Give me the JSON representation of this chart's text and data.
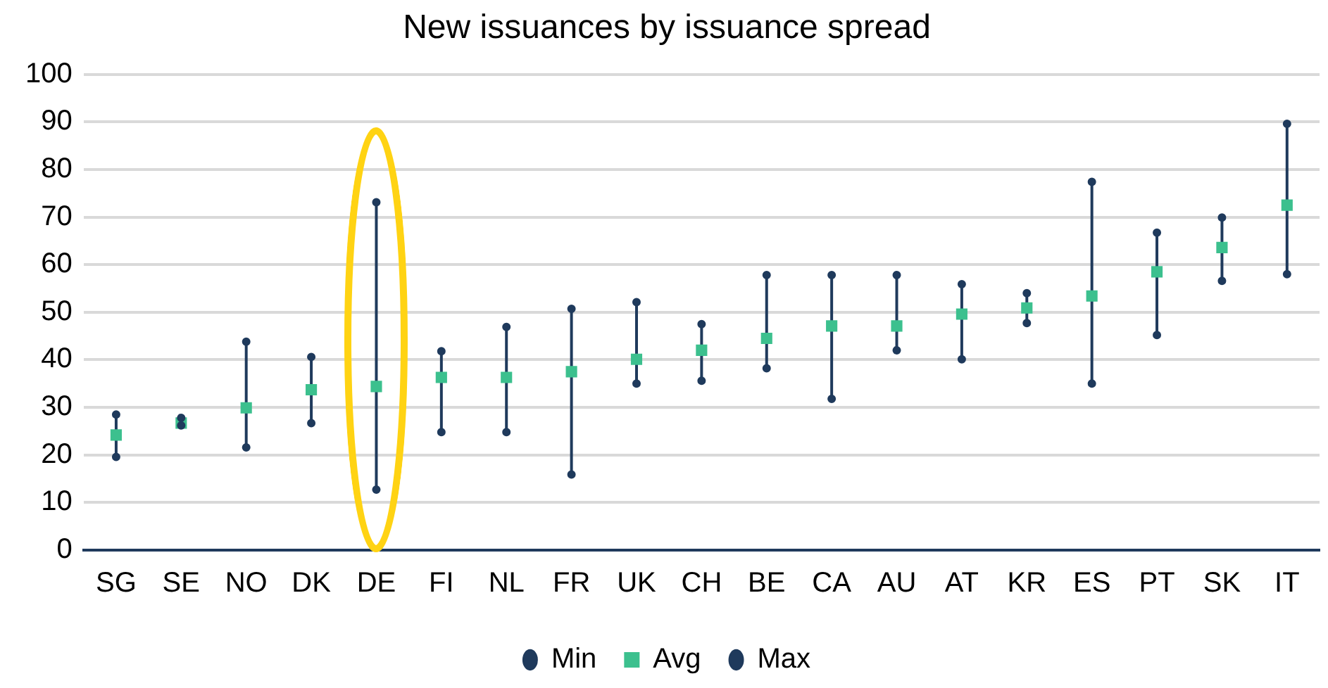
{
  "chart_data": {
    "type": "scatter",
    "title": "New issuances by issuance spread",
    "categories": [
      "SG",
      "SE",
      "NO",
      "DK",
      "DE",
      "FI",
      "NL",
      "FR",
      "UK",
      "CH",
      "BE",
      "CA",
      "AU",
      "AT",
      "KR",
      "ES",
      "PT",
      "SK",
      "IT"
    ],
    "series": [
      {
        "name": "Min",
        "color": "#1f3a5c",
        "marker": "circle",
        "values": [
          19.6,
          26.2,
          21.6,
          26.7,
          12.7,
          24.8,
          24.8,
          15.9,
          35.0,
          35.6,
          38.2,
          31.8,
          42.0,
          40.1,
          47.7,
          35.0,
          45.2,
          56.6,
          58.0
        ]
      },
      {
        "name": "Avg",
        "color": "#3cc08e",
        "marker": "square",
        "values": [
          24.2,
          26.7,
          29.9,
          33.7,
          34.4,
          36.3,
          36.3,
          37.5,
          40.1,
          42.0,
          44.5,
          47.1,
          47.1,
          49.6,
          50.9,
          53.4,
          58.5,
          63.6,
          72.5
        ]
      },
      {
        "name": "Max",
        "color": "#1f3a5c",
        "marker": "circle",
        "values": [
          28.5,
          27.8,
          43.8,
          40.6,
          73.1,
          41.8,
          46.9,
          50.7,
          52.1,
          47.5,
          57.8,
          57.8,
          57.8,
          55.9,
          54.0,
          77.4,
          66.7,
          69.9,
          89.6
        ]
      }
    ],
    "ylim": [
      0,
      100
    ],
    "yticks": [
      0,
      10,
      20,
      30,
      40,
      50,
      60,
      70,
      80,
      90,
      100
    ],
    "grid": "y",
    "legend": "bottom"
  }
}
